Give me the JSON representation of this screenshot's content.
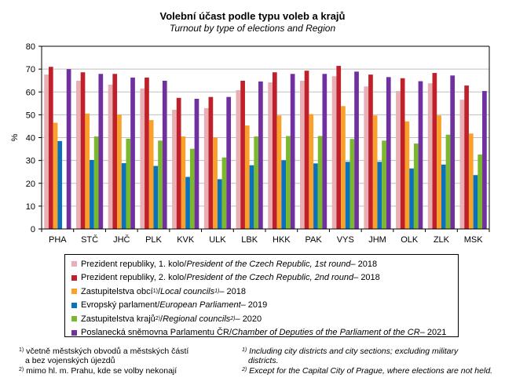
{
  "chart_data": {
    "type": "bar",
    "title": "Volební účast podle typu voleb a krajů",
    "subtitle": "Turnout by type of elections and Region",
    "xlabel": "",
    "ylabel": "%",
    "ylim": [
      0,
      80
    ],
    "yticks": [
      0,
      10,
      20,
      30,
      40,
      50,
      60,
      70,
      80
    ],
    "grid": true,
    "legend_position": "bottom",
    "categories": [
      "PHA",
      "STČ",
      "JHČ",
      "PLK",
      "KVK",
      "ULK",
      "LBK",
      "HKK",
      "PAK",
      "VYS",
      "JHM",
      "OLK",
      "ZLK",
      "MSK"
    ],
    "series": [
      {
        "name": "Prezident republiky, 1. kolo / President of the Czech Republic, 1st round – 2018",
        "color": "#E8AFB4",
        "values": [
          67.6,
          64.9,
          63.2,
          61.5,
          52.2,
          52.9,
          60.8,
          64.2,
          64.9,
          66.9,
          62.4,
          60.4,
          63.8,
          56.6
        ]
      },
      {
        "name": "Prezident republiky, 2. kolo / President of the Czech Republic, 2nd round – 2018",
        "color": "#C0202A",
        "values": [
          71.0,
          68.6,
          67.9,
          66.3,
          57.4,
          57.8,
          64.9,
          68.6,
          69.3,
          71.4,
          67.6,
          66.0,
          68.3,
          62.8
        ]
      },
      {
        "name": "Zastupitelstva obcí 1) / Local councils 1) – 2018",
        "color": "#F9A12A",
        "values": [
          46.5,
          50.5,
          50.1,
          47.7,
          40.5,
          40.1,
          45.3,
          49.7,
          50.3,
          53.8,
          49.7,
          47.1,
          49.7,
          41.8
        ]
      },
      {
        "name": "Evropský parlament / European Parliament – 2019",
        "color": "#0A72BD",
        "values": [
          38.5,
          30.2,
          28.8,
          27.6,
          22.8,
          21.8,
          27.9,
          30.1,
          28.7,
          29.4,
          29.4,
          26.5,
          28.2,
          23.6
        ]
      },
      {
        "name": "Zastupitelstva krajů 2) / Regional councils 2) – 2020",
        "color": "#7AB82D",
        "values": [
          null,
          40.5,
          39.5,
          38.7,
          35.1,
          31.3,
          40.5,
          40.7,
          40.7,
          39.4,
          38.7,
          37.4,
          41.3,
          32.6
        ]
      },
      {
        "name": "Poslanecká sněmovna Parlamentu ČR / Chamber of Deputies of the Parliament of the CR – 2021",
        "color": "#7030A0",
        "values": [
          70.0,
          67.9,
          66.3,
          64.9,
          57.0,
          57.8,
          64.6,
          67.9,
          67.9,
          68.9,
          66.5,
          64.7,
          67.2,
          60.4
        ]
      }
    ]
  },
  "legend": [
    {
      "cz": "Prezident republiky, 1. kolo",
      "sep": " / ",
      "en": "President of the Czech Republic, 1st round",
      "year": " – 2018",
      "cz_sup": "",
      "en_sup": ""
    },
    {
      "cz": "Prezident republiky, 2. kolo",
      "sep": " / ",
      "en": "President of the Czech Republic, 2nd round",
      "year": " – 2018",
      "cz_sup": "",
      "en_sup": ""
    },
    {
      "cz": "Zastupitelstva obcí",
      "sep": " / ",
      "en": "Local councils",
      "year": " – 2018",
      "cz_sup": "1)",
      "en_sup": "1)"
    },
    {
      "cz": "Evropský parlament",
      "sep": " / ",
      "en": "European Parliament",
      "year": " – 2019",
      "cz_sup": "",
      "en_sup": ""
    },
    {
      "cz": "Zastupitelstva krajů",
      "sep": " / ",
      "en": "Regional councils",
      "year": " – 2020",
      "cz_sup": "2)",
      "en_sup": "2)"
    },
    {
      "cz": "Poslanecká sněmovna Parlamentu ČR",
      "sep": " / ",
      "en": "Chamber of Deputies of the Parliament of the CR",
      "year": " – 2021",
      "cz_sup": "",
      "en_sup": ""
    }
  ],
  "footnotes": {
    "cz": [
      {
        "num": "1)",
        "line1": "včetně městských obvodů a městských částí",
        "line2": "a bez vojenských újezdů"
      },
      {
        "num": "2)",
        "line1": "mimo hl. m. Prahu, kde se volby nekonají",
        "line2": ""
      }
    ],
    "en": [
      {
        "num": "1)",
        "line1": "Including city districts and city sections; excluding military",
        "line2": "districts."
      },
      {
        "num": "2)",
        "line1": "Except for the Capital City of Prague, where elections are not held.",
        "line2": ""
      }
    ]
  }
}
